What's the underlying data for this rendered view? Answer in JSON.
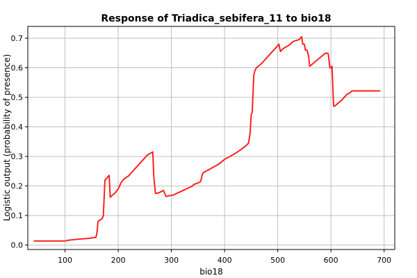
{
  "chart_data": {
    "type": "line",
    "title": "Response of Triadica_sebifera_11 to bio18",
    "xlabel": "bio18",
    "ylabel": "Logistic output (probability of presence)",
    "xlim": [
      30,
      720
    ],
    "ylim": [
      -0.015,
      0.74
    ],
    "x_ticks": [
      100,
      200,
      300,
      400,
      500,
      600,
      700
    ],
    "x_tick_labels": [
      "100",
      "200",
      "300",
      "400",
      "500",
      "600",
      "700"
    ],
    "y_ticks": [
      0.0,
      0.1,
      0.2,
      0.3,
      0.4,
      0.5,
      0.6,
      0.7
    ],
    "y_tick_labels": [
      "0.0",
      "0.1",
      "0.2",
      "0.3",
      "0.4",
      "0.5",
      "0.6",
      "0.7"
    ],
    "grid": true,
    "series": [
      {
        "color": "#ff2020",
        "x": [
          42,
          100,
          105,
          120,
          140,
          158,
          160,
          162,
          170,
          172,
          175,
          178,
          180,
          183,
          185,
          190,
          195,
          200,
          205,
          210,
          220,
          230,
          240,
          250,
          255,
          260,
          265,
          267,
          270,
          275,
          280,
          285,
          290,
          295,
          300,
          305,
          310,
          320,
          330,
          340,
          342,
          350,
          355,
          358,
          360,
          370,
          380,
          390,
          400,
          410,
          420,
          430,
          440,
          445,
          448,
          450,
          452,
          455,
          457,
          460,
          470,
          480,
          490,
          500,
          502,
          505,
          510,
          520,
          530,
          540,
          545,
          547,
          550,
          552,
          555,
          558,
          560,
          570,
          580,
          590,
          595,
          598,
          600,
          602,
          605,
          607,
          610,
          620,
          630,
          635,
          640,
          660,
          680,
          692
        ],
        "y": [
          0.014,
          0.014,
          0.016,
          0.019,
          0.022,
          0.026,
          0.04,
          0.08,
          0.09,
          0.1,
          0.22,
          0.225,
          0.23,
          0.236,
          0.162,
          0.17,
          0.178,
          0.19,
          0.21,
          0.222,
          0.235,
          0.255,
          0.275,
          0.295,
          0.305,
          0.31,
          0.315,
          0.228,
          0.175,
          0.176,
          0.18,
          0.185,
          0.164,
          0.167,
          0.168,
          0.17,
          0.175,
          0.183,
          0.192,
          0.2,
          0.205,
          0.21,
          0.215,
          0.238,
          0.245,
          0.255,
          0.265,
          0.275,
          0.29,
          0.3,
          0.31,
          0.322,
          0.336,
          0.345,
          0.38,
          0.44,
          0.45,
          0.575,
          0.59,
          0.6,
          0.615,
          0.635,
          0.655,
          0.675,
          0.68,
          0.655,
          0.665,
          0.675,
          0.69,
          0.695,
          0.705,
          0.68,
          0.68,
          0.66,
          0.66,
          0.64,
          0.605,
          0.62,
          0.635,
          0.65,
          0.648,
          0.6,
          0.6,
          0.605,
          0.47,
          0.47,
          0.475,
          0.49,
          0.51,
          0.515,
          0.522,
          0.522,
          0.522,
          0.522
        ]
      }
    ]
  }
}
